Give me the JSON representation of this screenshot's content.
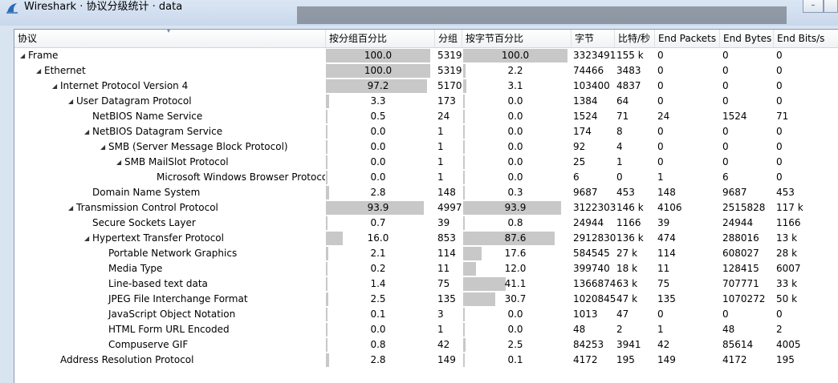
{
  "window": {
    "title": "Wireshark · 协议分级统计 · data",
    "icon": "wireshark-fin-icon",
    "minimize_glyph": "–",
    "accent": "#2b6cb8"
  },
  "columns": {
    "protocol": "协议",
    "percent_packets": "按分组百分比",
    "packets": "分组",
    "percent_bytes": "按字节百分比",
    "bytes": "字节",
    "bits_per_sec": "比特/秒",
    "end_packets": "End Packets",
    "end_bytes": "End Bytes",
    "end_bits": "End Bits/s"
  },
  "rows": [
    {
      "name": "Frame",
      "depth": 0,
      "expanded": true,
      "pct_pkts": "100.0",
      "pkts": "5319",
      "pct_bytes": "100.0",
      "bytes": "3323491",
      "bps": "155 k",
      "end_pkts": "0",
      "end_bytes": "0",
      "end_bps": "0"
    },
    {
      "name": "Ethernet",
      "depth": 1,
      "expanded": true,
      "pct_pkts": "100.0",
      "pkts": "5319",
      "pct_bytes": "2.2",
      "bytes": "74466",
      "bps": "3483",
      "end_pkts": "0",
      "end_bytes": "0",
      "end_bps": "0"
    },
    {
      "name": "Internet Protocol Version 4",
      "depth": 2,
      "expanded": true,
      "pct_pkts": "97.2",
      "pkts": "5170",
      "pct_bytes": "3.1",
      "bytes": "103400",
      "bps": "4837",
      "end_pkts": "0",
      "end_bytes": "0",
      "end_bps": "0"
    },
    {
      "name": "User Datagram Protocol",
      "depth": 3,
      "expanded": true,
      "pct_pkts": "3.3",
      "pkts": "173",
      "pct_bytes": "0.0",
      "bytes": "1384",
      "bps": "64",
      "end_pkts": "0",
      "end_bytes": "0",
      "end_bps": "0"
    },
    {
      "name": "NetBIOS Name Service",
      "depth": 4,
      "expanded": null,
      "pct_pkts": "0.5",
      "pkts": "24",
      "pct_bytes": "0.0",
      "bytes": "1524",
      "bps": "71",
      "end_pkts": "24",
      "end_bytes": "1524",
      "end_bps": "71"
    },
    {
      "name": "NetBIOS Datagram Service",
      "depth": 4,
      "expanded": true,
      "pct_pkts": "0.0",
      "pkts": "1",
      "pct_bytes": "0.0",
      "bytes": "174",
      "bps": "8",
      "end_pkts": "0",
      "end_bytes": "0",
      "end_bps": "0"
    },
    {
      "name": "SMB (Server Message Block Protocol)",
      "depth": 5,
      "expanded": true,
      "pct_pkts": "0.0",
      "pkts": "1",
      "pct_bytes": "0.0",
      "bytes": "92",
      "bps": "4",
      "end_pkts": "0",
      "end_bytes": "0",
      "end_bps": "0"
    },
    {
      "name": "SMB MailSlot Protocol",
      "depth": 6,
      "expanded": true,
      "pct_pkts": "0.0",
      "pkts": "1",
      "pct_bytes": "0.0",
      "bytes": "25",
      "bps": "1",
      "end_pkts": "0",
      "end_bytes": "0",
      "end_bps": "0"
    },
    {
      "name": "Microsoft Windows Browser Protocol",
      "depth": 8,
      "expanded": null,
      "pct_pkts": "0.0",
      "pkts": "1",
      "pct_bytes": "0.0",
      "bytes": "6",
      "bps": "0",
      "end_pkts": "1",
      "end_bytes": "6",
      "end_bps": "0"
    },
    {
      "name": "Domain Name System",
      "depth": 4,
      "expanded": null,
      "pct_pkts": "2.8",
      "pkts": "148",
      "pct_bytes": "0.3",
      "bytes": "9687",
      "bps": "453",
      "end_pkts": "148",
      "end_bytes": "9687",
      "end_bps": "453"
    },
    {
      "name": "Transmission Control Protocol",
      "depth": 3,
      "expanded": true,
      "pct_pkts": "93.9",
      "pkts": "4997",
      "pct_bytes": "93.9",
      "bytes": "3122303",
      "bps": "146 k",
      "end_pkts": "4106",
      "end_bytes": "2515828",
      "end_bps": "117 k"
    },
    {
      "name": "Secure Sockets Layer",
      "depth": 4,
      "expanded": null,
      "pct_pkts": "0.7",
      "pkts": "39",
      "pct_bytes": "0.8",
      "bytes": "24944",
      "bps": "1166",
      "end_pkts": "39",
      "end_bytes": "24944",
      "end_bps": "1166"
    },
    {
      "name": "Hypertext Transfer Protocol",
      "depth": 4,
      "expanded": true,
      "pct_pkts": "16.0",
      "pkts": "853",
      "pct_bytes": "87.6",
      "bytes": "2912830",
      "bps": "136 k",
      "end_pkts": "474",
      "end_bytes": "288016",
      "end_bps": "13 k"
    },
    {
      "name": "Portable Network Graphics",
      "depth": 5,
      "expanded": null,
      "pct_pkts": "2.1",
      "pkts": "114",
      "pct_bytes": "17.6",
      "bytes": "584545",
      "bps": "27 k",
      "end_pkts": "114",
      "end_bytes": "608027",
      "end_bps": "28 k"
    },
    {
      "name": "Media Type",
      "depth": 5,
      "expanded": null,
      "pct_pkts": "0.2",
      "pkts": "11",
      "pct_bytes": "12.0",
      "bytes": "399740",
      "bps": "18 k",
      "end_pkts": "11",
      "end_bytes": "128415",
      "end_bps": "6007"
    },
    {
      "name": "Line-based text data",
      "depth": 5,
      "expanded": null,
      "pct_pkts": "1.4",
      "pkts": "75",
      "pct_bytes": "41.1",
      "bytes": "1366874",
      "bps": "63 k",
      "end_pkts": "75",
      "end_bytes": "707771",
      "end_bps": "33 k"
    },
    {
      "name": "JPEG File Interchange Format",
      "depth": 5,
      "expanded": null,
      "pct_pkts": "2.5",
      "pkts": "135",
      "pct_bytes": "30.7",
      "bytes": "1020845",
      "bps": "47 k",
      "end_pkts": "135",
      "end_bytes": "1070272",
      "end_bps": "50 k"
    },
    {
      "name": "JavaScript Object Notation",
      "depth": 5,
      "expanded": null,
      "pct_pkts": "0.1",
      "pkts": "3",
      "pct_bytes": "0.0",
      "bytes": "1013",
      "bps": "47",
      "end_pkts": "0",
      "end_bytes": "0",
      "end_bps": "0"
    },
    {
      "name": "HTML Form URL Encoded",
      "depth": 5,
      "expanded": null,
      "pct_pkts": "0.0",
      "pkts": "1",
      "pct_bytes": "0.0",
      "bytes": "48",
      "bps": "2",
      "end_pkts": "1",
      "end_bytes": "48",
      "end_bps": "2"
    },
    {
      "name": "Compuserve GIF",
      "depth": 5,
      "expanded": null,
      "pct_pkts": "0.8",
      "pkts": "42",
      "pct_bytes": "2.5",
      "bytes": "84253",
      "bps": "3941",
      "end_pkts": "42",
      "end_bytes": "85614",
      "end_bps": "4005"
    },
    {
      "name": "Address Resolution Protocol",
      "depth": 2,
      "expanded": null,
      "pct_pkts": "2.8",
      "pkts": "149",
      "pct_bytes": "0.1",
      "bytes": "4172",
      "bps": "195",
      "end_pkts": "149",
      "end_bytes": "4172",
      "end_bps": "195"
    }
  ],
  "colors": {
    "bar_fill": "#c8c8c8",
    "header_bg": "#f6f7f9",
    "window_bg": "#d9e4f1"
  }
}
